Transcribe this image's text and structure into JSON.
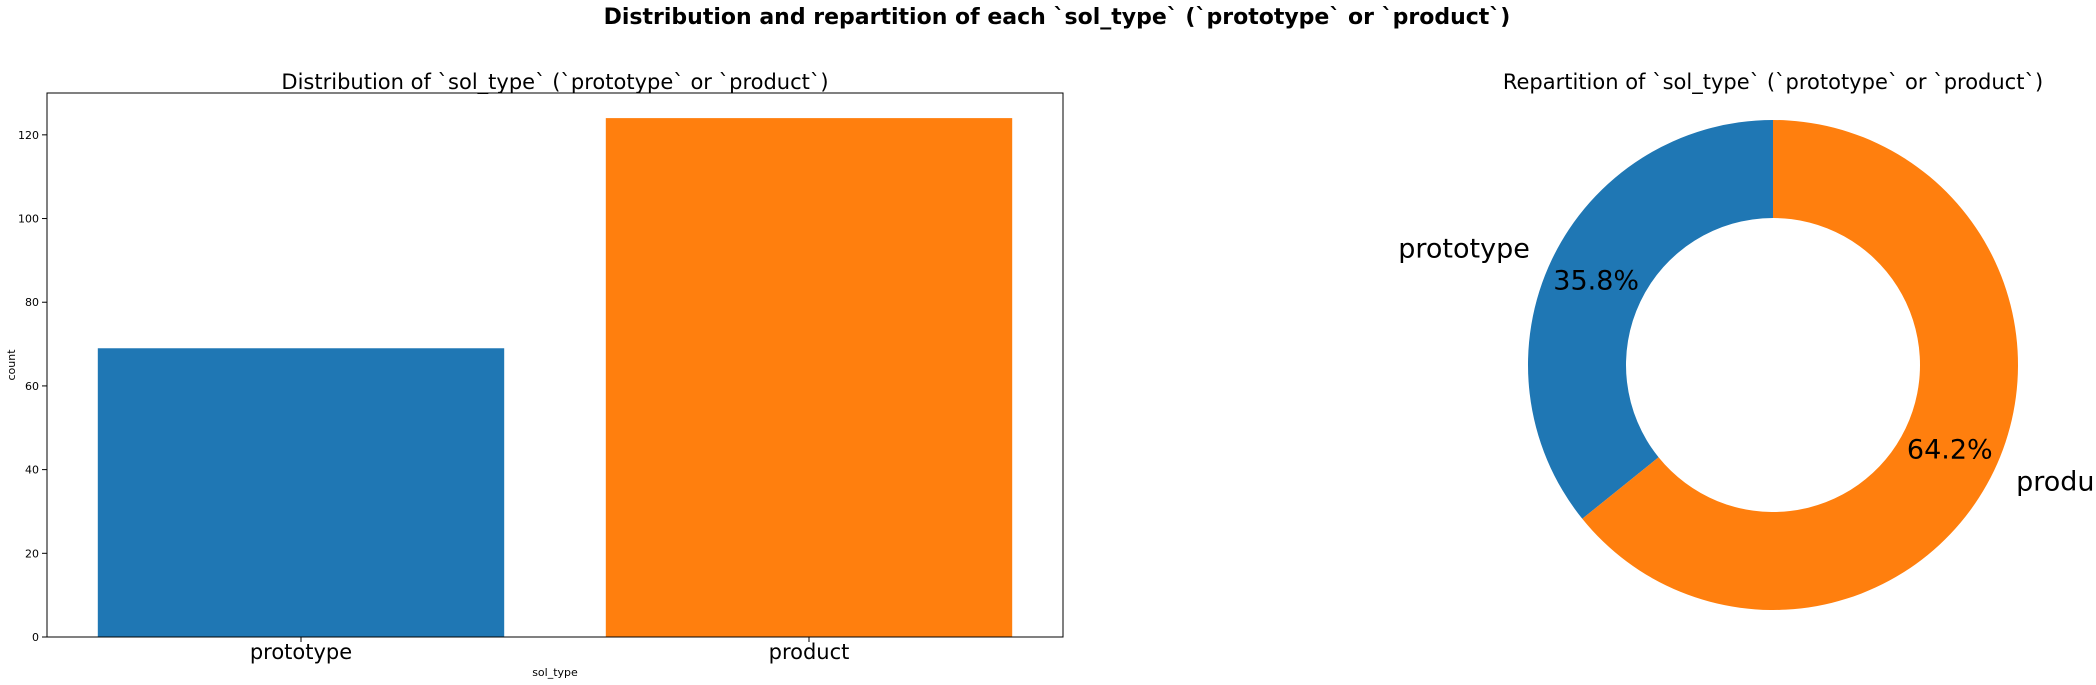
{
  "suptitle": "Distribution and repartition  of each `sol_type` (`prototype` or `product`)",
  "chart_data": [
    {
      "type": "bar",
      "title": "Distribution of `sol_type` (`prototype` or `product`)",
      "xlabel": "sol_type",
      "ylabel": "count",
      "categories": [
        "prototype",
        "product"
      ],
      "values": [
        69,
        124
      ],
      "ylim": [
        0,
        130
      ],
      "yticks": [
        0,
        20,
        40,
        60,
        80,
        100,
        120
      ],
      "colors": [
        "#1f77b4",
        "#ff7f0e"
      ],
      "grid": false
    },
    {
      "type": "pie",
      "title": "Repartition of `sol_type` (`prototype` or `product`)",
      "labels": [
        "prototype",
        "product"
      ],
      "values": [
        35.8,
        64.2
      ],
      "percent_labels": [
        "35.8%",
        "64.2%"
      ],
      "colors": [
        "#1f77b4",
        "#ff7f0e"
      ],
      "donut": true
    }
  ]
}
